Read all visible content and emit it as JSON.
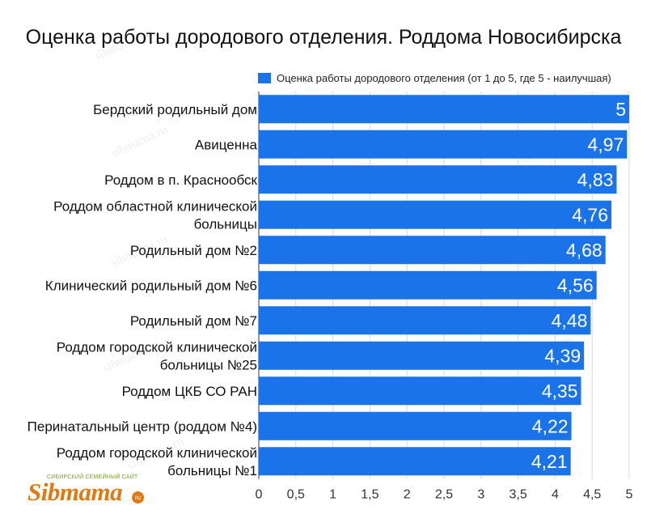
{
  "chart_data": {
    "type": "bar",
    "orientation": "horizontal",
    "title": "Оценка работы дородового отделения. Роддома Новосибирска",
    "categories": [
      "Бердский родильный дом",
      "Авиценна",
      "Роддом в п. Краснообск",
      "Роддом областной клинической больницы",
      "Родильный дом №2",
      "Клинический родильный дом №6",
      "Родильный дом №7",
      "Роддом городской клинической больницы №25",
      "Роддом ЦКБ СО РАН",
      "Перинатальный центр (роддом №4)",
      "Роддом городской клинической больницы №1"
    ],
    "category_lines": [
      [
        "Бердский родильный дом"
      ],
      [
        "Авиценна"
      ],
      [
        "Роддом в п. Краснообск"
      ],
      [
        "Роддом областной клинической",
        "больницы"
      ],
      [
        "Родильный дом №2"
      ],
      [
        "Клинический родильный дом №6"
      ],
      [
        "Родильный дом №7"
      ],
      [
        "Роддом городской клинической",
        "больницы №25"
      ],
      [
        "Роддом ЦКБ СО РАН"
      ],
      [
        "Перинатальный центр (роддом №4)"
      ],
      [
        "Роддом городской клинической",
        "больницы №1"
      ]
    ],
    "series": [
      {
        "name": "Оценка работы дородового отделения (от 1 до 5, где 5 - наилучшая)",
        "values": [
          5,
          4.97,
          4.83,
          4.76,
          4.68,
          4.56,
          4.48,
          4.39,
          4.35,
          4.22,
          4.21
        ],
        "value_labels": [
          "5",
          "4,97",
          "4,83",
          "4,76",
          "4,68",
          "4,56",
          "4,48",
          "4,39",
          "4,35",
          "4,22",
          "4,21"
        ]
      }
    ],
    "xlim": [
      0,
      5
    ],
    "xticks": [
      "0",
      "0,5",
      "1",
      "1,5",
      "2",
      "2,5",
      "3",
      "3,5",
      "4",
      "4,5",
      "5"
    ],
    "grid": true,
    "legend_position": "top-right",
    "bar_color": "#1a73e8"
  },
  "watermark": {
    "text": "sibmama.ru",
    "tagline": "СИБИРСКИЙ СЕМЕЙНЫЙ САЙТ",
    "logo": "Sibmama",
    "logo_suffix": "ru"
  }
}
